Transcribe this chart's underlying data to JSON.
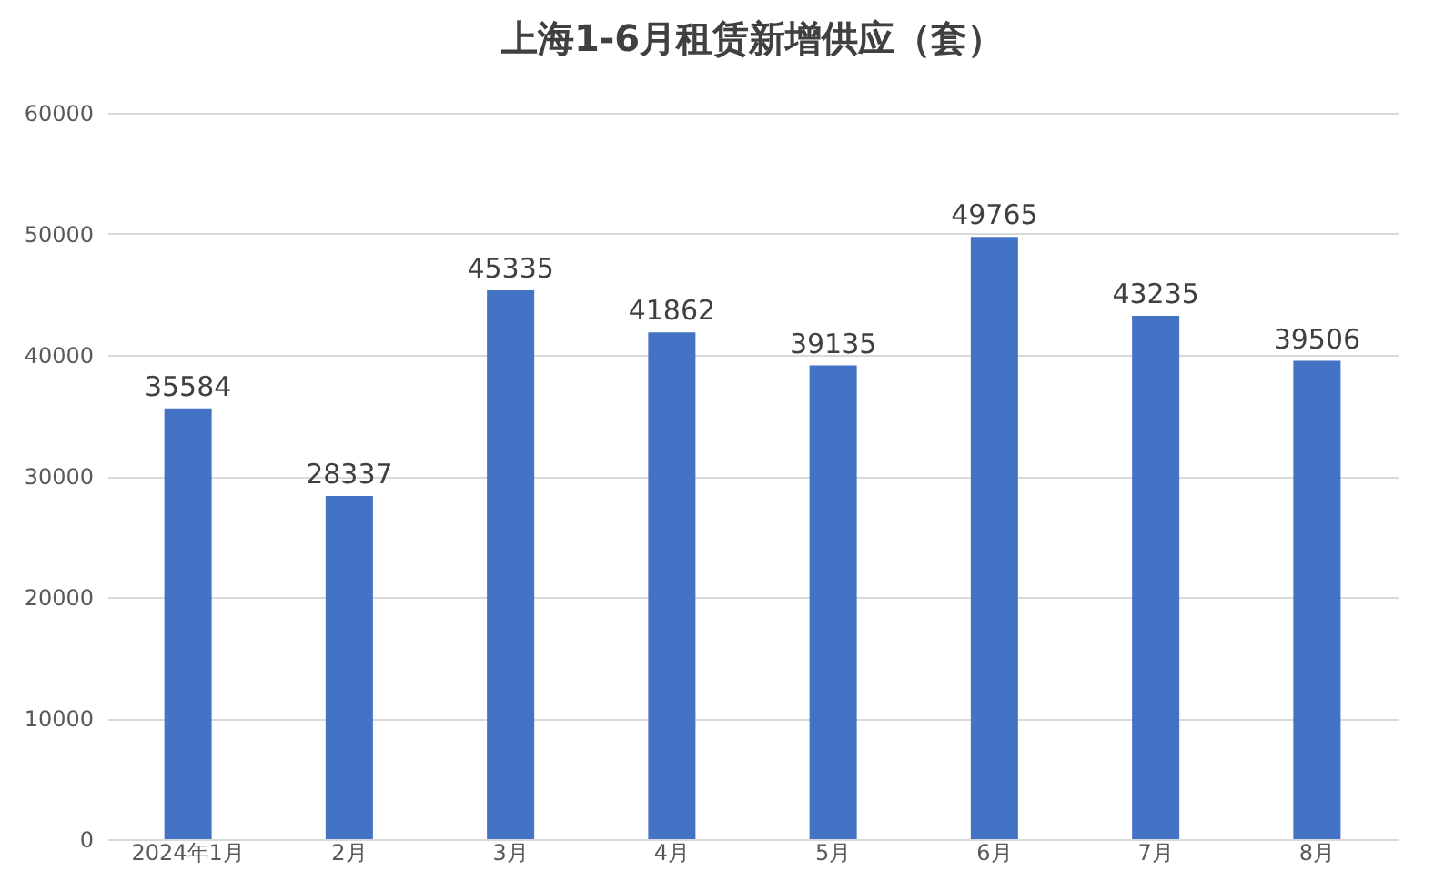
{
  "chart_data": {
    "type": "bar",
    "title": "上海1-6月租赁新增供应（套）",
    "categories": [
      "2024年1月",
      "2月",
      "3月",
      "4月",
      "5月",
      "6月",
      "7月",
      "8月"
    ],
    "values": [
      35584,
      28337,
      45335,
      41862,
      39135,
      49765,
      43235,
      39506
    ],
    "color": "#4472c4",
    "ylim": [
      0,
      60000
    ],
    "yticks": [
      0,
      10000,
      20000,
      30000,
      40000,
      50000,
      60000
    ],
    "grid": "y",
    "data_labels": true
  }
}
